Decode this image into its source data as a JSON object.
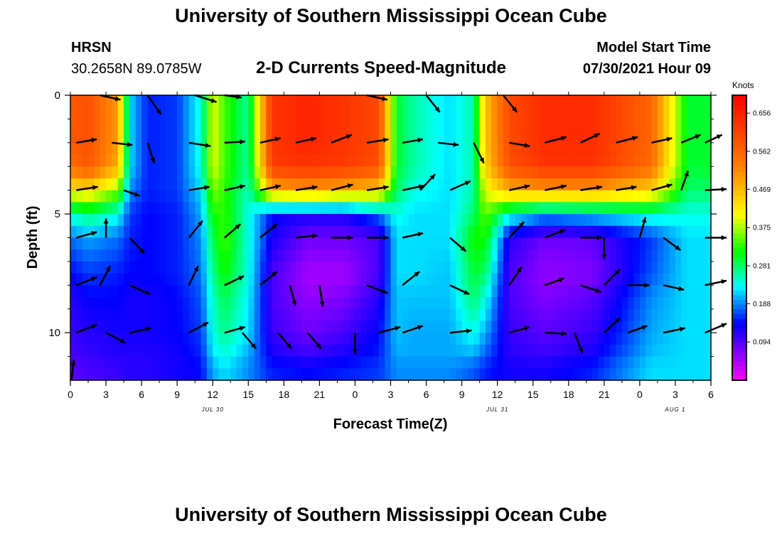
{
  "header": {
    "title": "University of Southern Mississippi Ocean Cube",
    "station": "HRSN",
    "coords": "30.2658N  89.0785W",
    "subtitle": "2-D Currents Speed-Magnitude",
    "model_start_label": "Model Start Time",
    "model_start_value": "07/30/2021 Hour 09"
  },
  "footer": {
    "title": "University of Southern Mississippi Ocean Cube"
  },
  "chart_data": {
    "type": "heatmap",
    "title": "2-D Currents Speed-Magnitude",
    "xlabel": "Forecast Time(Z)",
    "ylabel": "Depth (ft)",
    "units_label": "Knots",
    "x_range_hours": [
      0,
      54
    ],
    "x_ticks": [
      "0",
      "3",
      "6",
      "9",
      "12",
      "15",
      "18",
      "21",
      "0",
      "3",
      "6",
      "9",
      "12",
      "15",
      "18",
      "21",
      "0",
      "3",
      "6"
    ],
    "date_labels": [
      {
        "hour": 12,
        "label": "JUL 30"
      },
      {
        "hour": 36,
        "label": "JUL 31"
      },
      {
        "hour": 51,
        "label": "AUG 1"
      }
    ],
    "y_range_ft": [
      0,
      12
    ],
    "y_ticks": [
      0,
      5,
      10
    ],
    "colorbar_ticks": [
      0.094,
      0.188,
      0.281,
      0.375,
      0.469,
      0.562,
      0.656
    ],
    "colorbar_labels": [
      "0.094",
      "0.188",
      "0.281",
      "0.375",
      "0.469",
      "0.562",
      "0.656"
    ],
    "color_range": [
      0.0,
      0.7
    ],
    "depth_levels_ft": [
      0.5,
      2,
      3,
      4,
      5,
      6,
      7.5,
      8.5,
      10,
      11,
      11.5
    ],
    "speed_knots_profile": [
      [
        0.58,
        0.58,
        0.55,
        0.42,
        0.25,
        0.18,
        0.14,
        0.12,
        0.11,
        0.1,
        0.09
      ],
      [
        0.59,
        0.59,
        0.58,
        0.44,
        0.28,
        0.2,
        0.16,
        0.14,
        0.12,
        0.11,
        0.1
      ],
      [
        0.5,
        0.5,
        0.48,
        0.36,
        0.24,
        0.18,
        0.15,
        0.14,
        0.13,
        0.12,
        0.11
      ],
      [
        0.22,
        0.22,
        0.22,
        0.19,
        0.16,
        0.15,
        0.14,
        0.13,
        0.13,
        0.12,
        0.12
      ],
      [
        0.15,
        0.15,
        0.15,
        0.15,
        0.14,
        0.14,
        0.14,
        0.13,
        0.13,
        0.12,
        0.12
      ],
      [
        0.16,
        0.16,
        0.16,
        0.16,
        0.15,
        0.15,
        0.15,
        0.14,
        0.14,
        0.13,
        0.13
      ],
      [
        0.24,
        0.24,
        0.24,
        0.22,
        0.2,
        0.19,
        0.18,
        0.17,
        0.16,
        0.15,
        0.14
      ],
      [
        0.4,
        0.4,
        0.4,
        0.36,
        0.32,
        0.29,
        0.27,
        0.25,
        0.24,
        0.22,
        0.2
      ],
      [
        0.34,
        0.34,
        0.34,
        0.33,
        0.33,
        0.34,
        0.32,
        0.29,
        0.27,
        0.24,
        0.22
      ],
      [
        0.26,
        0.26,
        0.26,
        0.25,
        0.24,
        0.24,
        0.24,
        0.23,
        0.22,
        0.2,
        0.19
      ],
      [
        0.63,
        0.63,
        0.62,
        0.48,
        0.14,
        0.13,
        0.1,
        0.1,
        0.11,
        0.13,
        0.15
      ],
      [
        0.65,
        0.65,
        0.63,
        0.5,
        0.13,
        0.08,
        0.05,
        0.06,
        0.08,
        0.11,
        0.14
      ],
      [
        0.63,
        0.63,
        0.62,
        0.48,
        0.13,
        0.08,
        0.05,
        0.07,
        0.1,
        0.13,
        0.15
      ],
      [
        0.6,
        0.6,
        0.59,
        0.46,
        0.18,
        0.1,
        0.1,
        0.12,
        0.14,
        0.15,
        0.16
      ],
      [
        0.3,
        0.3,
        0.3,
        0.28,
        0.24,
        0.22,
        0.22,
        0.21,
        0.21,
        0.2,
        0.19
      ],
      [
        0.26,
        0.26,
        0.26,
        0.24,
        0.22,
        0.22,
        0.22,
        0.21,
        0.2,
        0.2,
        0.19
      ],
      [
        0.22,
        0.22,
        0.22,
        0.22,
        0.22,
        0.22,
        0.21,
        0.21,
        0.2,
        0.2,
        0.19
      ],
      [
        0.26,
        0.26,
        0.26,
        0.26,
        0.28,
        0.32,
        0.3,
        0.28,
        0.24,
        0.2,
        0.17
      ],
      [
        0.46,
        0.46,
        0.45,
        0.4,
        0.35,
        0.32,
        0.28,
        0.24,
        0.2,
        0.17,
        0.15
      ],
      [
        0.6,
        0.6,
        0.59,
        0.48,
        0.25,
        0.12,
        0.1,
        0.1,
        0.11,
        0.12,
        0.13
      ],
      [
        0.64,
        0.64,
        0.63,
        0.5,
        0.2,
        0.08,
        0.06,
        0.07,
        0.09,
        0.11,
        0.13
      ],
      [
        0.64,
        0.64,
        0.63,
        0.5,
        0.22,
        0.09,
        0.07,
        0.09,
        0.11,
        0.13,
        0.15
      ],
      [
        0.56,
        0.56,
        0.55,
        0.45,
        0.25,
        0.16,
        0.17,
        0.19,
        0.2,
        0.21,
        0.22
      ],
      [
        0.3,
        0.3,
        0.3,
        0.28,
        0.24,
        0.22,
        0.22,
        0.22,
        0.22,
        0.22,
        0.22
      ]
    ],
    "profile_hours": [
      0,
      1.5,
      4,
      5,
      6.5,
      9,
      11,
      12,
      13,
      15,
      17,
      20,
      23,
      26,
      27.5,
      29,
      32,
      34,
      35,
      37,
      40,
      44,
      49,
      52
    ],
    "vectors_knots": [
      {
        "t": 2.5,
        "d": 0,
        "u": 0.18,
        "v": -0.04
      },
      {
        "t": 6.5,
        "d": 0,
        "u": 0.12,
        "v": -0.17
      },
      {
        "t": 10.5,
        "d": 0,
        "u": 0.19,
        "v": -0.06
      },
      {
        "t": 13,
        "d": 0,
        "u": 0.15,
        "v": -0.02
      },
      {
        "t": 25,
        "d": 0,
        "u": 0.18,
        "v": -0.04
      },
      {
        "t": 30,
        "d": 0,
        "u": 0.12,
        "v": -0.15
      },
      {
        "t": 36.5,
        "d": 0,
        "u": 0.12,
        "v": -0.15
      },
      {
        "t": 0.5,
        "d": 2,
        "u": 0.18,
        "v": 0.03
      },
      {
        "t": 3.5,
        "d": 2,
        "u": 0.18,
        "v": -0.02
      },
      {
        "t": 6.5,
        "d": 2,
        "u": 0.06,
        "v": -0.18
      },
      {
        "t": 10,
        "d": 2,
        "u": 0.19,
        "v": -0.03
      },
      {
        "t": 13,
        "d": 2,
        "u": 0.18,
        "v": 0.01
      },
      {
        "t": 16,
        "d": 2,
        "u": 0.18,
        "v": 0.04
      },
      {
        "t": 19,
        "d": 2,
        "u": 0.18,
        "v": 0.04
      },
      {
        "t": 22,
        "d": 2,
        "u": 0.18,
        "v": 0.07
      },
      {
        "t": 25,
        "d": 2,
        "u": 0.19,
        "v": 0.03
      },
      {
        "t": 28,
        "d": 2,
        "u": 0.18,
        "v": 0.03
      },
      {
        "t": 31,
        "d": 2,
        "u": 0.18,
        "v": -0.02
      },
      {
        "t": 34,
        "d": 2,
        "u": 0.09,
        "v": -0.18
      },
      {
        "t": 37,
        "d": 2,
        "u": 0.18,
        "v": -0.03
      },
      {
        "t": 40,
        "d": 2,
        "u": 0.19,
        "v": 0.05
      },
      {
        "t": 43,
        "d": 2,
        "u": 0.17,
        "v": 0.08
      },
      {
        "t": 46,
        "d": 2,
        "u": 0.19,
        "v": 0.05
      },
      {
        "t": 49,
        "d": 2,
        "u": 0.18,
        "v": 0.04
      },
      {
        "t": 51.5,
        "d": 2,
        "u": 0.17,
        "v": 0.07
      },
      {
        "t": 53.5,
        "d": 2,
        "u": 0.15,
        "v": 0.07
      },
      {
        "t": 0.5,
        "d": 4,
        "u": 0.19,
        "v": 0.03
      },
      {
        "t": 4.5,
        "d": 4,
        "u": 0.14,
        "v": -0.05
      },
      {
        "t": 10,
        "d": 4,
        "u": 0.18,
        "v": 0.03
      },
      {
        "t": 13,
        "d": 4,
        "u": 0.18,
        "v": 0.04
      },
      {
        "t": 16,
        "d": 4,
        "u": 0.18,
        "v": 0.04
      },
      {
        "t": 19,
        "d": 4,
        "u": 0.19,
        "v": 0.03
      },
      {
        "t": 22,
        "d": 4,
        "u": 0.19,
        "v": 0.05
      },
      {
        "t": 25,
        "d": 4,
        "u": 0.19,
        "v": 0.03
      },
      {
        "t": 28,
        "d": 4,
        "u": 0.19,
        "v": 0.04
      },
      {
        "t": 29.5,
        "d": 4,
        "u": 0.13,
        "v": 0.14
      },
      {
        "t": 32,
        "d": 4,
        "u": 0.18,
        "v": 0.08
      },
      {
        "t": 37,
        "d": 4,
        "u": 0.18,
        "v": 0.04
      },
      {
        "t": 40,
        "d": 4,
        "u": 0.19,
        "v": 0.04
      },
      {
        "t": 43,
        "d": 4,
        "u": 0.19,
        "v": 0.03
      },
      {
        "t": 46,
        "d": 4,
        "u": 0.18,
        "v": 0.03
      },
      {
        "t": 49,
        "d": 4,
        "u": 0.18,
        "v": 0.05
      },
      {
        "t": 51.5,
        "d": 4,
        "u": 0.06,
        "v": 0.17
      },
      {
        "t": 53.5,
        "d": 4,
        "u": 0.19,
        "v": 0.01
      },
      {
        "t": 0.5,
        "d": 6,
        "u": 0.18,
        "v": 0.05
      },
      {
        "t": 3,
        "d": 6,
        "u": 0.0,
        "v": 0.17
      },
      {
        "t": 5,
        "d": 6,
        "u": 0.13,
        "v": -0.14
      },
      {
        "t": 10,
        "d": 6,
        "u": 0.12,
        "v": 0.15
      },
      {
        "t": 13,
        "d": 6,
        "u": 0.14,
        "v": 0.12
      },
      {
        "t": 16,
        "d": 6,
        "u": 0.15,
        "v": 0.12
      },
      {
        "t": 19,
        "d": 6,
        "u": 0.19,
        "v": 0.02
      },
      {
        "t": 22,
        "d": 6,
        "u": 0.19,
        "v": 0.0
      },
      {
        "t": 25,
        "d": 6,
        "u": 0.19,
        "v": 0.0
      },
      {
        "t": 28,
        "d": 6,
        "u": 0.18,
        "v": 0.04
      },
      {
        "t": 32,
        "d": 6,
        "u": 0.14,
        "v": -0.12
      },
      {
        "t": 37,
        "d": 6,
        "u": 0.13,
        "v": 0.14
      },
      {
        "t": 40,
        "d": 6,
        "u": 0.18,
        "v": 0.07
      },
      {
        "t": 43,
        "d": 6,
        "u": 0.19,
        "v": 0.0
      },
      {
        "t": 45,
        "d": 6,
        "u": 0.0,
        "v": -0.19
      },
      {
        "t": 48,
        "d": 6,
        "u": 0.05,
        "v": 0.18
      },
      {
        "t": 50,
        "d": 6,
        "u": 0.15,
        "v": -0.11
      },
      {
        "t": 53.5,
        "d": 6,
        "u": 0.19,
        "v": 0.0
      },
      {
        "t": 0.5,
        "d": 8,
        "u": 0.18,
        "v": 0.07
      },
      {
        "t": 2.5,
        "d": 8,
        "u": 0.09,
        "v": 0.17
      },
      {
        "t": 5,
        "d": 8,
        "u": 0.18,
        "v": -0.08
      },
      {
        "t": 10,
        "d": 8,
        "u": 0.08,
        "v": 0.17
      },
      {
        "t": 13,
        "d": 8,
        "u": 0.17,
        "v": 0.08
      },
      {
        "t": 16,
        "d": 8,
        "u": 0.15,
        "v": 0.12
      },
      {
        "t": 18.5,
        "d": 8,
        "u": 0.05,
        "v": -0.18
      },
      {
        "t": 21,
        "d": 8,
        "u": 0.03,
        "v": -0.19
      },
      {
        "t": 25,
        "d": 8,
        "u": 0.18,
        "v": -0.07
      },
      {
        "t": 28,
        "d": 8,
        "u": 0.15,
        "v": 0.12
      },
      {
        "t": 32,
        "d": 8,
        "u": 0.17,
        "v": -0.08
      },
      {
        "t": 37,
        "d": 8,
        "u": 0.11,
        "v": 0.16
      },
      {
        "t": 40,
        "d": 8,
        "u": 0.17,
        "v": 0.06
      },
      {
        "t": 43,
        "d": 8,
        "u": 0.18,
        "v": -0.06
      },
      {
        "t": 45,
        "d": 8,
        "u": 0.14,
        "v": 0.14
      },
      {
        "t": 47,
        "d": 8,
        "u": 0.19,
        "v": 0.0
      },
      {
        "t": 50,
        "d": 8,
        "u": 0.18,
        "v": -0.04
      },
      {
        "t": 53.5,
        "d": 8,
        "u": 0.19,
        "v": 0.04
      },
      {
        "t": 0.5,
        "d": 10,
        "u": 0.18,
        "v": 0.07
      },
      {
        "t": 3,
        "d": 10,
        "u": 0.17,
        "v": -0.09
      },
      {
        "t": 5,
        "d": 10,
        "u": 0.19,
        "v": 0.04
      },
      {
        "t": 10,
        "d": 10,
        "u": 0.17,
        "v": 0.09
      },
      {
        "t": 13,
        "d": 10,
        "u": 0.18,
        "v": 0.05
      },
      {
        "t": 14.5,
        "d": 10,
        "u": 0.12,
        "v": -0.14
      },
      {
        "t": 17.5,
        "d": 10,
        "u": 0.12,
        "v": -0.14
      },
      {
        "t": 20,
        "d": 10,
        "u": 0.12,
        "v": -0.14
      },
      {
        "t": 24,
        "d": 10,
        "u": 0.0,
        "v": -0.19
      },
      {
        "t": 26,
        "d": 10,
        "u": 0.19,
        "v": 0.05
      },
      {
        "t": 28,
        "d": 10,
        "u": 0.18,
        "v": 0.06
      },
      {
        "t": 32,
        "d": 10,
        "u": 0.19,
        "v": 0.02
      },
      {
        "t": 37,
        "d": 10,
        "u": 0.18,
        "v": 0.05
      },
      {
        "t": 40,
        "d": 10,
        "u": 0.19,
        "v": -0.01
      },
      {
        "t": 42.5,
        "d": 10,
        "u": 0.07,
        "v": -0.18
      },
      {
        "t": 45,
        "d": 10,
        "u": 0.14,
        "v": 0.13
      },
      {
        "t": 47,
        "d": 10,
        "u": 0.17,
        "v": 0.06
      },
      {
        "t": 50,
        "d": 10,
        "u": 0.19,
        "v": 0.04
      },
      {
        "t": 53.5,
        "d": 10,
        "u": 0.19,
        "v": 0.08
      },
      {
        "t": 0.1,
        "d": 12,
        "u": 0.02,
        "v": 0.18
      }
    ]
  }
}
